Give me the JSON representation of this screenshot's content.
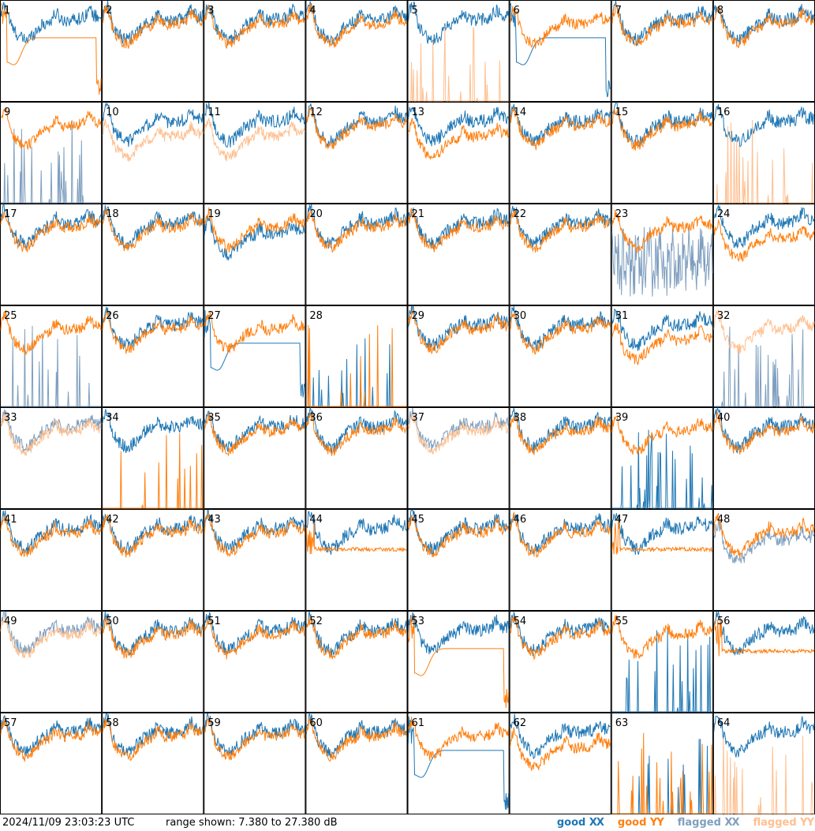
{
  "timestamp": "2024/11/09 23:03:23 UTC",
  "range_text": "range shown: 7.380 to 27.380 dB",
  "legend": [
    {
      "label": "good",
      "pol": "XX",
      "color": "#1f77b4"
    },
    {
      "label": "good",
      "pol": "YY",
      "color": "#ff7f0e"
    },
    {
      "label": "flagged",
      "pol": "XX",
      "color": "#7f9fbf"
    },
    {
      "label": "flagged",
      "pol": "YY",
      "color": "#ffbf8f"
    }
  ],
  "chart_data": {
    "type": "line",
    "title": "",
    "xlabel": "",
    "ylabel": "",
    "ylim": [
      7.38,
      27.38
    ],
    "units": "dB",
    "grid_columns": 8,
    "grid_rows": 8,
    "panels": [
      {
        "label": "1",
        "xx": "normal",
        "yy": "dip",
        "xx_flag": false,
        "yy_flag": false
      },
      {
        "label": "2",
        "xx": "normal",
        "yy": "normal",
        "xx_flag": false,
        "yy_flag": false
      },
      {
        "label": "3",
        "xx": "normal",
        "yy": "normal",
        "xx_flag": false,
        "yy_flag": false
      },
      {
        "label": "4",
        "xx": "normal",
        "yy": "normal",
        "xx_flag": false,
        "yy_flag": false
      },
      {
        "label": "5",
        "xx": "normal",
        "yy": "spikes",
        "xx_flag": false,
        "yy_flag": true
      },
      {
        "label": "6",
        "xx": "dip",
        "yy": "normal",
        "xx_flag": false,
        "yy_flag": false
      },
      {
        "label": "7",
        "xx": "normal",
        "yy": "normal",
        "xx_flag": false,
        "yy_flag": false
      },
      {
        "label": "8",
        "xx": "normal",
        "yy": "normal",
        "xx_flag": false,
        "yy_flag": false
      },
      {
        "label": "9",
        "xx": "spikes",
        "yy": "normal",
        "xx_flag": true,
        "yy_flag": false
      },
      {
        "label": "10",
        "xx": "normal",
        "yy": "low",
        "xx_flag": false,
        "yy_flag": true
      },
      {
        "label": "11",
        "xx": "normal",
        "yy": "low",
        "xx_flag": false,
        "yy_flag": true
      },
      {
        "label": "12",
        "xx": "normal",
        "yy": "normal",
        "xx_flag": false,
        "yy_flag": false
      },
      {
        "label": "13",
        "xx": "normal",
        "yy": "low",
        "xx_flag": false,
        "yy_flag": false
      },
      {
        "label": "14",
        "xx": "normal",
        "yy": "normal",
        "xx_flag": false,
        "yy_flag": false
      },
      {
        "label": "15",
        "xx": "normal",
        "yy": "normal",
        "xx_flag": false,
        "yy_flag": false
      },
      {
        "label": "16",
        "xx": "normal",
        "yy": "spikes",
        "xx_flag": false,
        "yy_flag": true
      },
      {
        "label": "17",
        "xx": "normal",
        "yy": "normal",
        "xx_flag": false,
        "yy_flag": false
      },
      {
        "label": "18",
        "xx": "normal",
        "yy": "normal",
        "xx_flag": false,
        "yy_flag": false
      },
      {
        "label": "19",
        "xx": "low",
        "yy": "normal",
        "xx_flag": false,
        "yy_flag": false
      },
      {
        "label": "20",
        "xx": "normal",
        "yy": "normal",
        "xx_flag": false,
        "yy_flag": false
      },
      {
        "label": "21",
        "xx": "normal",
        "yy": "normal",
        "xx_flag": false,
        "yy_flag": false
      },
      {
        "label": "22",
        "xx": "normal",
        "yy": "normal",
        "xx_flag": false,
        "yy_flag": false
      },
      {
        "label": "23",
        "xx": "noisy",
        "yy": "normal",
        "xx_flag": true,
        "yy_flag": false
      },
      {
        "label": "24",
        "xx": "normal",
        "yy": "low",
        "xx_flag": false,
        "yy_flag": false
      },
      {
        "label": "25",
        "xx": "spikes",
        "yy": "normal",
        "xx_flag": true,
        "yy_flag": false
      },
      {
        "label": "26",
        "xx": "normal",
        "yy": "normal",
        "xx_flag": false,
        "yy_flag": false
      },
      {
        "label": "27",
        "xx": "dip",
        "yy": "normal",
        "xx_flag": false,
        "yy_flag": false
      },
      {
        "label": "28",
        "xx": "spikes",
        "yy": "spikes",
        "xx_flag": false,
        "yy_flag": false
      },
      {
        "label": "29",
        "xx": "normal",
        "yy": "normal",
        "xx_flag": false,
        "yy_flag": false
      },
      {
        "label": "30",
        "xx": "normal",
        "yy": "normal",
        "xx_flag": false,
        "yy_flag": false
      },
      {
        "label": "31",
        "xx": "normal",
        "yy": "low",
        "xx_flag": false,
        "yy_flag": false
      },
      {
        "label": "32",
        "xx": "spikes",
        "yy": "normal",
        "xx_flag": true,
        "yy_flag": true
      },
      {
        "label": "33",
        "xx": "normal",
        "yy": "normal",
        "xx_flag": true,
        "yy_flag": true
      },
      {
        "label": "34",
        "xx": "normal",
        "yy": "spikes",
        "xx_flag": false,
        "yy_flag": false
      },
      {
        "label": "35",
        "xx": "normal",
        "yy": "normal",
        "xx_flag": false,
        "yy_flag": false
      },
      {
        "label": "36",
        "xx": "normal",
        "yy": "normal",
        "xx_flag": false,
        "yy_flag": false
      },
      {
        "label": "37",
        "xx": "normal",
        "yy": "normal",
        "xx_flag": true,
        "yy_flag": true
      },
      {
        "label": "38",
        "xx": "normal",
        "yy": "normal",
        "xx_flag": false,
        "yy_flag": false
      },
      {
        "label": "39",
        "xx": "spikes",
        "yy": "normal",
        "xx_flag": false,
        "yy_flag": false
      },
      {
        "label": "40",
        "xx": "normal",
        "yy": "normal",
        "xx_flag": false,
        "yy_flag": false
      },
      {
        "label": "41",
        "xx": "normal",
        "yy": "normal",
        "xx_flag": false,
        "yy_flag": false
      },
      {
        "label": "42",
        "xx": "normal",
        "yy": "normal",
        "xx_flag": false,
        "yy_flag": false
      },
      {
        "label": "43",
        "xx": "normal",
        "yy": "normal",
        "xx_flag": false,
        "yy_flag": false
      },
      {
        "label": "44",
        "xx": "normal",
        "yy": "flat",
        "xx_flag": false,
        "yy_flag": false
      },
      {
        "label": "45",
        "xx": "normal",
        "yy": "normal",
        "xx_flag": false,
        "yy_flag": false
      },
      {
        "label": "46",
        "xx": "normal",
        "yy": "normal",
        "xx_flag": false,
        "yy_flag": false
      },
      {
        "label": "47",
        "xx": "normal",
        "yy": "flat",
        "xx_flag": false,
        "yy_flag": false
      },
      {
        "label": "48",
        "xx": "low",
        "yy": "normal",
        "xx_flag": true,
        "yy_flag": false
      },
      {
        "label": "49",
        "xx": "normal",
        "yy": "normal",
        "xx_flag": true,
        "yy_flag": true
      },
      {
        "label": "50",
        "xx": "normal",
        "yy": "normal",
        "xx_flag": false,
        "yy_flag": false
      },
      {
        "label": "51",
        "xx": "normal",
        "yy": "normal",
        "xx_flag": false,
        "yy_flag": false
      },
      {
        "label": "52",
        "xx": "normal",
        "yy": "normal",
        "xx_flag": false,
        "yy_flag": false
      },
      {
        "label": "53",
        "xx": "normal",
        "yy": "dip",
        "xx_flag": false,
        "yy_flag": false
      },
      {
        "label": "54",
        "xx": "normal",
        "yy": "normal",
        "xx_flag": false,
        "yy_flag": false
      },
      {
        "label": "55",
        "xx": "spikes",
        "yy": "normal",
        "xx_flag": false,
        "yy_flag": false
      },
      {
        "label": "56",
        "xx": "normal",
        "yy": "flat",
        "xx_flag": false,
        "yy_flag": false
      },
      {
        "label": "57",
        "xx": "normal",
        "yy": "normal",
        "xx_flag": false,
        "yy_flag": false
      },
      {
        "label": "58",
        "xx": "normal",
        "yy": "normal",
        "xx_flag": false,
        "yy_flag": false
      },
      {
        "label": "59",
        "xx": "normal",
        "yy": "normal",
        "xx_flag": false,
        "yy_flag": false
      },
      {
        "label": "60",
        "xx": "normal",
        "yy": "normal",
        "xx_flag": false,
        "yy_flag": false
      },
      {
        "label": "61",
        "xx": "dip",
        "yy": "normal",
        "xx_flag": false,
        "yy_flag": false
      },
      {
        "label": "62",
        "xx": "normal",
        "yy": "low",
        "xx_flag": false,
        "yy_flag": false
      },
      {
        "label": "63",
        "xx": "spikes",
        "yy": "spikes",
        "xx_flag": false,
        "yy_flag": false
      },
      {
        "label": "64",
        "xx": "normal",
        "yy": "spikes",
        "xx_flag": false,
        "yy_flag": true
      }
    ]
  }
}
